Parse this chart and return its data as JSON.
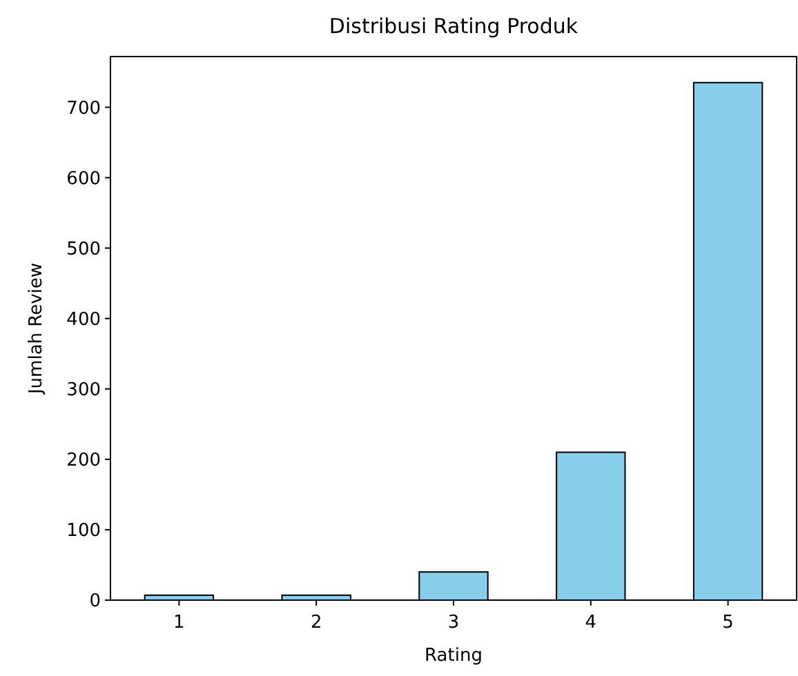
{
  "chart_data": {
    "type": "bar",
    "title": "Distribusi Rating Produk",
    "xlabel": "Rating",
    "ylabel": "Jumlah Review",
    "categories": [
      "1",
      "2",
      "3",
      "4",
      "5"
    ],
    "values": [
      7,
      7,
      40,
      210,
      735
    ],
    "color": "#87ceeb",
    "ylim": [
      0,
      772
    ],
    "yticks": [
      0,
      100,
      200,
      300,
      400,
      500,
      600,
      700
    ],
    "grid": false
  }
}
